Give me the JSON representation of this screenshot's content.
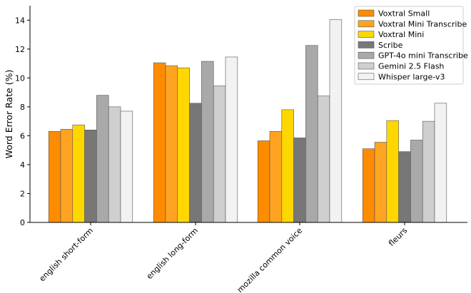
{
  "chart_data": {
    "type": "bar",
    "title": "",
    "xlabel": "",
    "ylabel": "Word Error Rate (%)",
    "ylim": [
      0,
      15
    ],
    "yticks": [
      0,
      2,
      4,
      6,
      8,
      10,
      12,
      14
    ],
    "categories": [
      "english short-form",
      "english long-form",
      "mozilla common voice",
      "fleurs"
    ],
    "legend_position": "top-right",
    "grid": false,
    "series": [
      {
        "name": "Voxtral Small",
        "color": "#ff8c00",
        "values": [
          6.3,
          11.05,
          5.65,
          5.1
        ]
      },
      {
        "name": "Voxtral Mini Transcribe",
        "color": "#ffa420",
        "values": [
          6.45,
          10.85,
          6.3,
          5.55
        ]
      },
      {
        "name": "Voxtral Mini",
        "color": "#ffd700",
        "values": [
          6.75,
          10.7,
          7.8,
          7.05
        ]
      },
      {
        "name": "Scribe",
        "color": "#777777",
        "values": [
          6.4,
          8.25,
          5.85,
          4.9
        ]
      },
      {
        "name": "GPT-4o mini Transcribe",
        "color": "#a9a9a9",
        "values": [
          8.8,
          11.15,
          12.25,
          5.7
        ]
      },
      {
        "name": "Gemini 2.5 Flash",
        "color": "#cfcfcf",
        "values": [
          8.0,
          9.45,
          8.75,
          7.0
        ]
      },
      {
        "name": "Whisper large-v3",
        "color": "#f2f2f2",
        "values": [
          7.7,
          11.45,
          14.05,
          8.25
        ]
      }
    ]
  }
}
